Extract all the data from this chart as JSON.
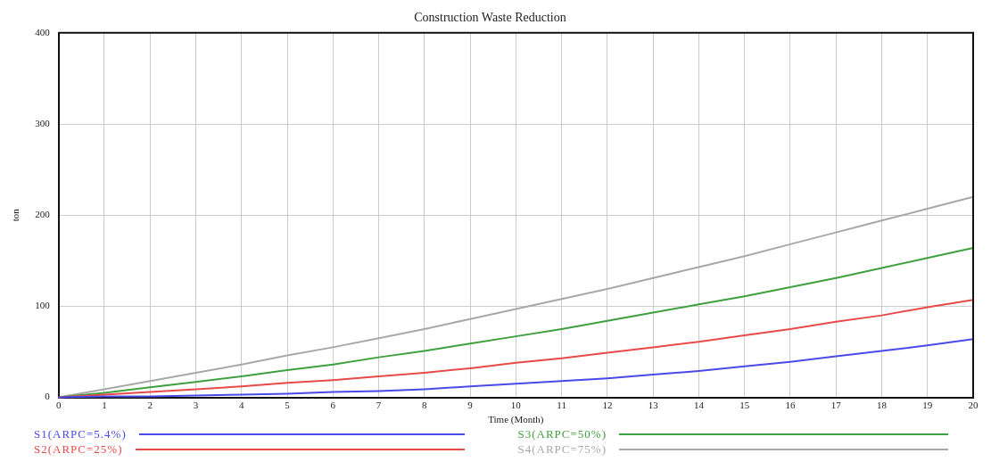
{
  "chart_data": {
    "type": "line",
    "title": "Construction Waste Reduction",
    "xlabel": "Time (Month)",
    "ylabel": "ton",
    "x": [
      0,
      1,
      2,
      3,
      4,
      5,
      6,
      7,
      8,
      9,
      10,
      11,
      12,
      13,
      14,
      15,
      16,
      17,
      18,
      19,
      20
    ],
    "xlim": [
      0,
      20
    ],
    "xticks": [
      0,
      1,
      2,
      3,
      4,
      5,
      6,
      7,
      8,
      9,
      10,
      11,
      12,
      13,
      14,
      15,
      16,
      17,
      18,
      19,
      20
    ],
    "ylim": [
      0,
      400
    ],
    "yticks": [
      0,
      100,
      200,
      300,
      400
    ],
    "grid": true,
    "legend": "bottom",
    "marker": "none",
    "line_style": "solid",
    "series": [
      {
        "name": "S1(ARPC=5.4%)",
        "color": "#4a4ae8",
        "values": [
          0,
          1,
          1,
          2,
          3,
          4,
          6,
          7,
          9,
          12,
          15,
          18,
          21,
          25,
          29,
          34,
          39,
          45,
          51,
          57,
          64
        ]
      },
      {
        "name": "S2(ARPC=25%)",
        "color": "#e84a4a",
        "values": [
          0,
          3,
          6,
          9,
          12,
          16,
          19,
          23,
          27,
          32,
          38,
          43,
          49,
          55,
          61,
          68,
          75,
          83,
          90,
          99,
          107
        ]
      },
      {
        "name": "S3(ARPC=50%)",
        "color": "#3fa03f",
        "values": [
          0,
          5,
          11,
          17,
          23,
          30,
          36,
          44,
          51,
          59,
          67,
          75,
          84,
          93,
          102,
          111,
          121,
          131,
          142,
          153,
          164
        ]
      },
      {
        "name": "S4(ARPC=75%)",
        "color": "#a8a8a8",
        "values": [
          0,
          9,
          18,
          27,
          36,
          46,
          55,
          65,
          75,
          86,
          97,
          108,
          119,
          131,
          143,
          155,
          168,
          181,
          194,
          207,
          220
        ]
      }
    ]
  }
}
